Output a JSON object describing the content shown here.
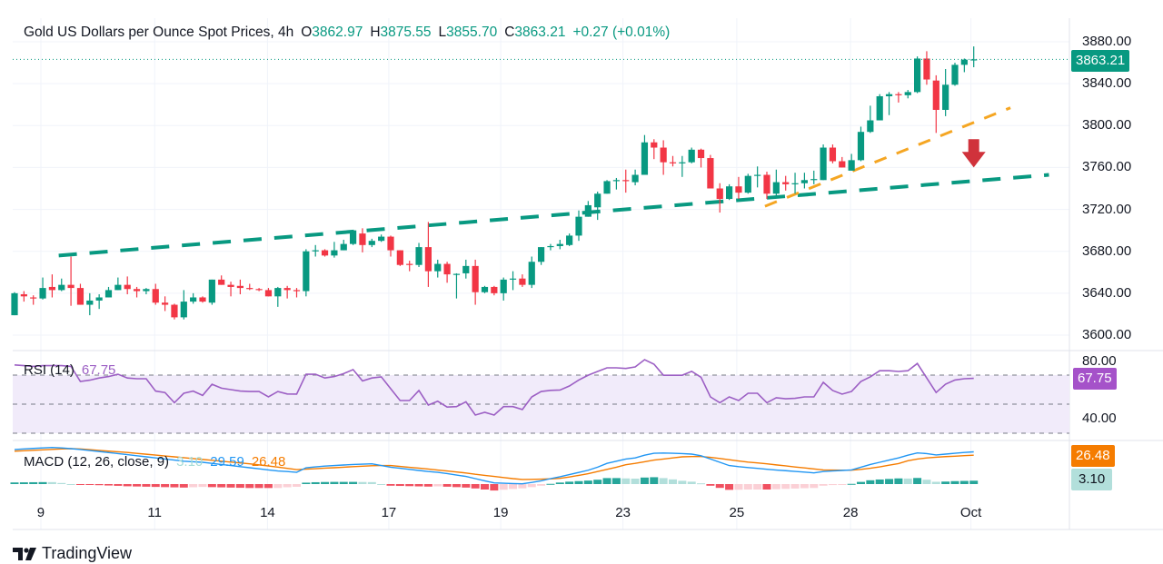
{
  "header": {
    "symbol_title": "Gold US Dollars per Ounce Spot Prices, 4h",
    "open_label": "O",
    "open": "3862.97",
    "high_label": "H",
    "high": "3875.55",
    "low_label": "L",
    "low": "3855.70",
    "close_label": "C",
    "close": "3863.21",
    "change": "+0.27 (+0.01%)"
  },
  "price_axis": {
    "ticks": [
      "3880.00",
      "3840.00",
      "3800.00",
      "3760.00",
      "3720.00",
      "3680.00",
      "3640.00",
      "3600.00"
    ],
    "last_price_label": "3863.21"
  },
  "rsi": {
    "label": "RSI (14)",
    "value": "67.75",
    "axis_ticks": [
      "80.00",
      "40.00"
    ],
    "value_tag": "67.75"
  },
  "macd": {
    "label": "MACD (12, 26, close, 9)",
    "histogram_value": "3.10",
    "macd_value": "29.59",
    "signal_value": "26.48",
    "signal_tag": "26.48",
    "histogram_tag": "3.10"
  },
  "time_axis": {
    "labels": [
      {
        "text": "9",
        "bar": 2.8
      },
      {
        "text": "11",
        "bar": 14.9
      },
      {
        "text": "14",
        "bar": 26.9
      },
      {
        "text": "17",
        "bar": 39.8
      },
      {
        "text": "19",
        "bar": 51.7
      },
      {
        "text": "23",
        "bar": 64.7
      },
      {
        "text": "25",
        "bar": 76.8
      },
      {
        "text": "28",
        "bar": 88.9
      },
      {
        "text": "Oct",
        "bar": 101.7
      }
    ]
  },
  "branding": {
    "logo_text": "TradingView"
  },
  "colors": {
    "up": "#089981",
    "down": "#f23645",
    "rsi_line": "#9c5fc4",
    "rsi_band": "#f1ebfa",
    "macd_line": "#2196f3",
    "signal_line": "#f57c00",
    "trendline_main": "#089981",
    "trendline_support": "#f5a623",
    "arrow": "#d0323b",
    "hist_up_strong": "#26a69a",
    "hist_up_weak": "#b2dfdb",
    "hist_down_strong": "#f05060",
    "hist_down_weak": "#fbd0d6"
  },
  "chart_data": [
    {
      "type": "candlestick",
      "title": "Gold US Dollars per Ounce Spot Prices, 4h",
      "ylim": [
        3587,
        3896
      ],
      "yticks": [
        3600,
        3640,
        3680,
        3720,
        3760,
        3800,
        3840,
        3880
      ],
      "grid": true,
      "ohlc": [
        [
          3619,
          3641,
          3619,
          3640
        ],
        [
          3639,
          3642,
          3632,
          3637
        ],
        [
          3636,
          3638,
          3629,
          3635
        ],
        [
          3635,
          3655,
          3634,
          3645
        ],
        [
          3646,
          3658,
          3636,
          3643
        ],
        [
          3643,
          3654,
          3642,
          3648
        ],
        [
          3648,
          3675,
          3628,
          3645
        ],
        [
          3645,
          3649,
          3629,
          3629
        ],
        [
          3629,
          3640,
          3619,
          3633
        ],
        [
          3633,
          3639,
          3625,
          3636
        ],
        [
          3636,
          3646,
          3636,
          3643
        ],
        [
          3643,
          3655,
          3643,
          3648
        ],
        [
          3648,
          3656,
          3639,
          3644
        ],
        [
          3644,
          3646,
          3636,
          3642
        ],
        [
          3642,
          3645,
          3639,
          3644
        ],
        [
          3644,
          3649,
          3629,
          3631
        ],
        [
          3631,
          3637,
          3623,
          3629
        ],
        [
          3629,
          3630,
          3615,
          3617
        ],
        [
          3617,
          3643,
          3615,
          3632
        ],
        [
          3632,
          3640,
          3630,
          3636
        ],
        [
          3636,
          3637,
          3631,
          3632
        ],
        [
          3631,
          3653,
          3629,
          3653
        ],
        [
          3653,
          3657,
          3648,
          3648
        ],
        [
          3648,
          3651,
          3637,
          3646
        ],
        [
          3647,
          3653,
          3639,
          3645
        ],
        [
          3645,
          3649,
          3643,
          3644
        ],
        [
          3644,
          3645,
          3642,
          3643
        ],
        [
          3643,
          3645,
          3637,
          3637
        ],
        [
          3637,
          3646,
          3627,
          3645
        ],
        [
          3645,
          3647,
          3635,
          3643
        ],
        [
          3643,
          3645,
          3636,
          3642
        ],
        [
          3642,
          3682,
          3637,
          3680
        ],
        [
          3680,
          3686,
          3675,
          3681
        ],
        [
          3681,
          3682,
          3675,
          3676
        ],
        [
          3676,
          3689,
          3674,
          3681
        ],
        [
          3681,
          3691,
          3681,
          3687
        ],
        [
          3687,
          3700,
          3686,
          3700
        ],
        [
          3697,
          3702,
          3679,
          3686
        ],
        [
          3686,
          3692,
          3684,
          3690
        ],
        [
          3690,
          3696,
          3689,
          3694
        ],
        [
          3694,
          3695,
          3675,
          3681
        ],
        [
          3681,
          3681,
          3666,
          3667
        ],
        [
          3668,
          3671,
          3661,
          3667
        ],
        [
          3667,
          3688,
          3665,
          3684
        ],
        [
          3684,
          3708,
          3646,
          3661
        ],
        [
          3661,
          3672,
          3655,
          3668
        ],
        [
          3668,
          3670,
          3650,
          3658
        ],
        [
          3658,
          3659,
          3635,
          3658.5
        ],
        [
          3659,
          3672,
          3654,
          3666
        ],
        [
          3666,
          3672,
          3629,
          3641
        ],
        [
          3641,
          3647,
          3640,
          3646
        ],
        [
          3646,
          3647,
          3638,
          3640
        ],
        [
          3640,
          3655,
          3633,
          3653
        ],
        [
          3653,
          3661,
          3643,
          3654
        ],
        [
          3654,
          3658,
          3646,
          3648
        ],
        [
          3648,
          3675,
          3645,
          3670
        ],
        [
          3670,
          3684,
          3667,
          3684
        ],
        [
          3684,
          3687,
          3681,
          3685
        ],
        [
          3685,
          3691,
          3682,
          3687
        ],
        [
          3686,
          3697,
          3685,
          3695
        ],
        [
          3695,
          3719,
          3690,
          3713
        ],
        [
          3713,
          3728,
          3713,
          3724
        ],
        [
          3722,
          3737,
          3710,
          3735
        ],
        [
          3735,
          3748,
          3735,
          3747
        ],
        [
          3747,
          3750,
          3739,
          3748
        ],
        [
          3748,
          3758,
          3736,
          3747
        ],
        [
          3746,
          3758,
          3743,
          3753
        ],
        [
          3753,
          3791,
          3753,
          3784
        ],
        [
          3784,
          3787,
          3768,
          3779
        ],
        [
          3779,
          3786,
          3753,
          3765
        ],
        [
          3765,
          3771,
          3761,
          3764
        ],
        [
          3764,
          3771,
          3751,
          3765
        ],
        [
          3765,
          3779,
          3764,
          3777
        ],
        [
          3777,
          3778,
          3760,
          3769
        ],
        [
          3769,
          3772,
          3740,
          3740
        ],
        [
          3740,
          3745,
          3717,
          3730
        ],
        [
          3730,
          3744,
          3729,
          3742
        ],
        [
          3742,
          3751,
          3730,
          3736
        ],
        [
          3736,
          3754,
          3735,
          3752
        ],
        [
          3752,
          3761,
          3741,
          3753
        ],
        [
          3753,
          3756,
          3730,
          3735
        ],
        [
          3735,
          3758,
          3733,
          3746
        ],
        [
          3746,
          3752,
          3738,
          3744
        ],
        [
          3744,
          3755,
          3735,
          3745
        ],
        [
          3745,
          3755,
          3740,
          3748
        ],
        [
          3748,
          3757,
          3744,
          3749
        ],
        [
          3748,
          3782,
          3748,
          3779
        ],
        [
          3779,
          3782,
          3764,
          3766
        ],
        [
          3766,
          3770,
          3760,
          3760
        ],
        [
          3757,
          3773,
          3757,
          3767
        ],
        [
          3767,
          3799,
          3766,
          3794
        ],
        [
          3794,
          3819,
          3793,
          3805
        ],
        [
          3805,
          3830,
          3805,
          3828
        ],
        [
          3828,
          3832,
          3810,
          3830
        ],
        [
          3830,
          3832,
          3822,
          3829
        ],
        [
          3829,
          3834,
          3826,
          3832
        ],
        [
          3832,
          3866,
          3831,
          3864
        ],
        [
          3864,
          3871,
          3839,
          3844
        ],
        [
          3843,
          3848,
          3793,
          3815
        ],
        [
          3815,
          3854,
          3809,
          3839
        ],
        [
          3839,
          3860,
          3838,
          3858
        ],
        [
          3858,
          3864,
          3851,
          3863
        ],
        [
          3862.97,
          3875.55,
          3855.7,
          3863.21
        ]
      ],
      "last_price": 3863.21,
      "annotations": [
        {
          "type": "trendline",
          "style": "dashed",
          "color": "#089981",
          "from": {
            "bar": 4.7,
            "price": 3676
          },
          "to": {
            "bar": 110,
            "price": 3753
          }
        },
        {
          "type": "trendline",
          "style": "dashed",
          "color": "#f5a623",
          "from": {
            "bar": 79.8,
            "price": 3723
          },
          "to": {
            "bar": 105.9,
            "price": 3817
          }
        },
        {
          "type": "arrow",
          "direction": "down",
          "color": "#d0323b",
          "bar": 102,
          "from_price": 3787,
          "to_price": 3760
        }
      ]
    },
    {
      "type": "line",
      "title": "RSI (14)",
      "ylim": [
        30,
        87
      ],
      "yticks": [
        80,
        40
      ],
      "levels": [
        70,
        50,
        30
      ],
      "series": [
        {
          "name": "RSI (14)",
          "values": [
            77,
            76.5,
            76,
            76.5,
            76.5,
            76.5,
            76,
            65.6,
            66.5,
            68,
            69,
            70.6,
            68,
            67.5,
            67.5,
            59,
            58,
            51,
            57.5,
            59,
            56,
            63.7,
            61,
            60,
            59,
            58.7,
            58.7,
            55,
            58.7,
            57,
            56.9,
            70.6,
            70.6,
            68,
            69,
            71,
            73.8,
            66,
            68,
            68.8,
            60.6,
            52.5,
            52.5,
            59.4,
            49.4,
            52,
            48,
            48.3,
            51.6,
            42.5,
            44.4,
            42.5,
            48.3,
            48.3,
            46.3,
            55,
            58.7,
            59.5,
            59.7,
            62.5,
            66.6,
            69.9,
            72.5,
            75,
            75,
            74.6,
            75.6,
            80.6,
            77.5,
            69.9,
            69.9,
            69.9,
            72.6,
            68.5,
            55,
            51,
            55,
            52.5,
            57.5,
            57.5,
            51,
            54.4,
            53.7,
            54,
            55,
            55,
            65,
            59.4,
            56.9,
            58.7,
            65.6,
            68.8,
            73,
            73,
            72.5,
            73,
            78,
            68,
            58,
            63.7,
            66.6,
            67.5,
            67.75
          ]
        }
      ]
    },
    {
      "type": "line",
      "title": "MACD (12, 26, close, 9)",
      "ylim": [
        -6,
        38
      ],
      "series": [
        {
          "name": "MACD",
          "values": [
            31.7,
            32.2,
            32.7,
            33.2,
            33.6,
            33.2,
            32.5,
            31.7,
            30.8,
            29.9,
            28.9,
            28,
            27,
            26,
            25,
            24,
            23,
            22,
            21,
            20.5,
            20,
            19,
            18,
            17,
            16,
            15,
            14,
            13,
            12,
            11.5,
            10.8,
            15,
            15.8,
            16.5,
            17,
            17.5,
            18,
            18.3,
            18.6,
            17,
            15.5,
            14.5,
            13.5,
            12.5,
            11.5,
            10.8,
            9.6,
            8.3,
            7,
            5,
            3,
            1.1,
            0.8,
            0.5,
            0.3,
            1.5,
            3,
            5,
            6.7,
            8.7,
            10.7,
            12.7,
            15.5,
            19,
            21,
            23,
            24,
            26.5,
            28.3,
            28.5,
            28.3,
            28,
            27.5,
            26,
            23,
            20,
            17,
            16,
            15.2,
            14.4,
            13.6,
            12.9,
            12.3,
            11.6,
            11,
            10.3,
            11.5,
            12,
            12.5,
            13,
            15.5,
            18,
            20,
            22,
            24,
            26.5,
            28.6,
            28,
            26.7,
            27.5,
            28.3,
            29,
            29.59
          ]
        },
        {
          "name": "Signal",
          "values": [
            30.2,
            30.6,
            31,
            31.4,
            31.8,
            32.2,
            32.5,
            32.2,
            31.6,
            30.9,
            30.2,
            29.6,
            29,
            28.2,
            27.4,
            26.6,
            25.8,
            25,
            24.2,
            23.4,
            22.6,
            21.8,
            21,
            20.2,
            19.4,
            18.6,
            17.6,
            16.6,
            15.6,
            14.4,
            13.3,
            13.7,
            14.1,
            14.6,
            15,
            15.5,
            16,
            16.4,
            16.8,
            17,
            17,
            16.2,
            15.4,
            14.6,
            13.8,
            12.9,
            12,
            11.1,
            10.2,
            9,
            8,
            7,
            6,
            5,
            4.2,
            4.3,
            4.5,
            4.8,
            5.3,
            6.5,
            8,
            9.5,
            11.5,
            13.5,
            15.5,
            17.8,
            19,
            20.5,
            22,
            23,
            24,
            25,
            25.3,
            25.3,
            24.5,
            23.5,
            22.3,
            21.2,
            20.2,
            19.4,
            18.6,
            17.6,
            16.7,
            15.7,
            14.8,
            13.9,
            13,
            12.9,
            12.8,
            12.8,
            13.5,
            14.5,
            15.8,
            17.3,
            18.8,
            21.4,
            23,
            24,
            24.6,
            25.2,
            25.6,
            26.1,
            26.48
          ]
        }
      ]
    }
  ]
}
